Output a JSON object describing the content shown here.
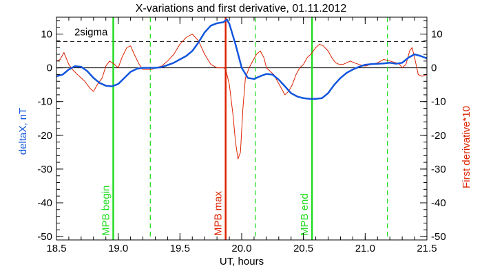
{
  "chart_data": {
    "type": "line",
    "title": "X-variations and first derivative, 01.11.2012",
    "xlabel": "UT, hours",
    "ylabel_left": "deltaX, nT",
    "ylabel_right": "First derivative*10",
    "xlim": [
      18.5,
      21.5
    ],
    "ylim": [
      -51,
      15
    ],
    "xticks": [
      18.5,
      19.0,
      19.5,
      20.0,
      20.5,
      21.0,
      21.5
    ],
    "xtick_labels": [
      "18.5",
      "19.0",
      "19.5",
      "20.0",
      "20.5",
      "21.0",
      "21.5"
    ],
    "yticks": [
      10,
      0,
      -10,
      -20,
      -30,
      -40,
      -50
    ],
    "ytick_labels": [
      "10",
      "0",
      "-10",
      "-20",
      "-30",
      "-40",
      "-50"
    ],
    "reference_lines": [
      {
        "y": 0,
        "style": "solid",
        "color": "#000000"
      },
      {
        "y": 7.8,
        "style": "dashed",
        "color": "#000000",
        "label": "2sigma"
      }
    ],
    "vertical_lines": [
      {
        "x": 18.96,
        "style": "solid",
        "color": "#22dd22",
        "label": "MPB begin"
      },
      {
        "x": 19.26,
        "style": "dashed",
        "color": "#22dd22",
        "label": ""
      },
      {
        "x": 19.87,
        "style": "solid",
        "color": "#dd2200",
        "label": "MPB max"
      },
      {
        "x": 20.11,
        "style": "dashed",
        "color": "#22dd22",
        "label": ""
      },
      {
        "x": 20.57,
        "style": "solid",
        "color": "#22dd22",
        "label": "MPB end"
      },
      {
        "x": 21.18,
        "style": "dashed",
        "color": "#22dd22",
        "label": ""
      }
    ],
    "series": [
      {
        "color": "#1155dd",
        "x": [
          18.5,
          18.55,
          18.6,
          18.65,
          18.7,
          18.75,
          18.8,
          18.85,
          18.9,
          18.95,
          19.0,
          19.05,
          19.1,
          19.15,
          19.2,
          19.25,
          19.3,
          19.35,
          19.4,
          19.45,
          19.5,
          19.55,
          19.6,
          19.65,
          19.7,
          19.75,
          19.8,
          19.85,
          19.88,
          19.9,
          19.95,
          20.0,
          20.05,
          20.1,
          20.15,
          20.2,
          20.25,
          20.3,
          20.35,
          20.4,
          20.45,
          20.5,
          20.55,
          20.6,
          20.65,
          20.7,
          20.75,
          20.8,
          20.85,
          20.9,
          20.95,
          21.0,
          21.05,
          21.1,
          21.15,
          21.2,
          21.25,
          21.3,
          21.35,
          21.4,
          21.45,
          21.5
        ],
        "y": [
          -2.5,
          -2,
          -0.5,
          0.5,
          0.3,
          -1,
          -3,
          -4.5,
          -5.3,
          -5.5,
          -4.8,
          -3,
          -1.2,
          -0.3,
          0,
          0,
          0,
          0.2,
          0.8,
          1.5,
          2.5,
          3.5,
          5,
          7.5,
          10.5,
          12.5,
          13.2,
          13.5,
          14.3,
          13,
          7,
          0,
          -3,
          -3.3,
          -2.5,
          -1.8,
          -2,
          -3.5,
          -5.5,
          -7.5,
          -8.5,
          -9,
          -9.2,
          -9.2,
          -9,
          -7.5,
          -5,
          -3,
          -1.5,
          -0.5,
          0.3,
          0.9,
          1.1,
          1.2,
          1.3,
          1.5,
          1.2,
          1.5,
          3,
          4,
          3.5,
          2.8
        ]
      },
      {
        "color": "#dd2200",
        "x": [
          18.5,
          18.53,
          18.56,
          18.6,
          18.63,
          18.67,
          18.7,
          18.73,
          18.77,
          18.8,
          18.83,
          18.87,
          18.9,
          18.93,
          18.97,
          19.0,
          19.03,
          19.07,
          19.1,
          19.13,
          19.17,
          19.2,
          19.23,
          19.27,
          19.3,
          19.35,
          19.4,
          19.45,
          19.5,
          19.55,
          19.6,
          19.65,
          19.7,
          19.75,
          19.8,
          19.85,
          19.87,
          19.9,
          19.93,
          19.95,
          19.97,
          19.99,
          20.01,
          20.03,
          20.06,
          20.09,
          20.12,
          20.15,
          20.18,
          20.2,
          20.23,
          20.26,
          20.29,
          20.32,
          20.35,
          20.38,
          20.41,
          20.44,
          20.47,
          20.5,
          20.53,
          20.56,
          20.6,
          20.63,
          20.66,
          20.7,
          20.73,
          20.76,
          20.79,
          20.82,
          20.85,
          20.88,
          20.91,
          20.95,
          21.0,
          21.05,
          21.1,
          21.15,
          21.2,
          21.25,
          21.28,
          21.3,
          21.33,
          21.36,
          21.38,
          21.4,
          21.43,
          21.46,
          21.5
        ],
        "y": [
          2,
          2.5,
          4.5,
          1,
          -0.5,
          -2,
          -3,
          -4,
          -6,
          -7,
          -5,
          -3,
          0.5,
          2,
          1,
          0,
          3,
          6,
          6.5,
          4,
          1,
          -0.5,
          -0.5,
          -0.5,
          0,
          0.5,
          2,
          4,
          7,
          9,
          10,
          8,
          4,
          1,
          0,
          0,
          -0.3,
          -5,
          -14,
          -22,
          -27,
          -25,
          -12,
          -3,
          0,
          2,
          4,
          5,
          3,
          0,
          -1,
          -2,
          -4,
          -6,
          -8,
          -7,
          -5,
          -2,
          0,
          1,
          3,
          4,
          6,
          7,
          6.5,
          5,
          3,
          1.5,
          1,
          1,
          1.5,
          2,
          1.5,
          1,
          0.5,
          1,
          1.5,
          2.5,
          2,
          1.5,
          1,
          0,
          1,
          5,
          6,
          3,
          -2,
          -2.5,
          -2
        ]
      }
    ]
  }
}
